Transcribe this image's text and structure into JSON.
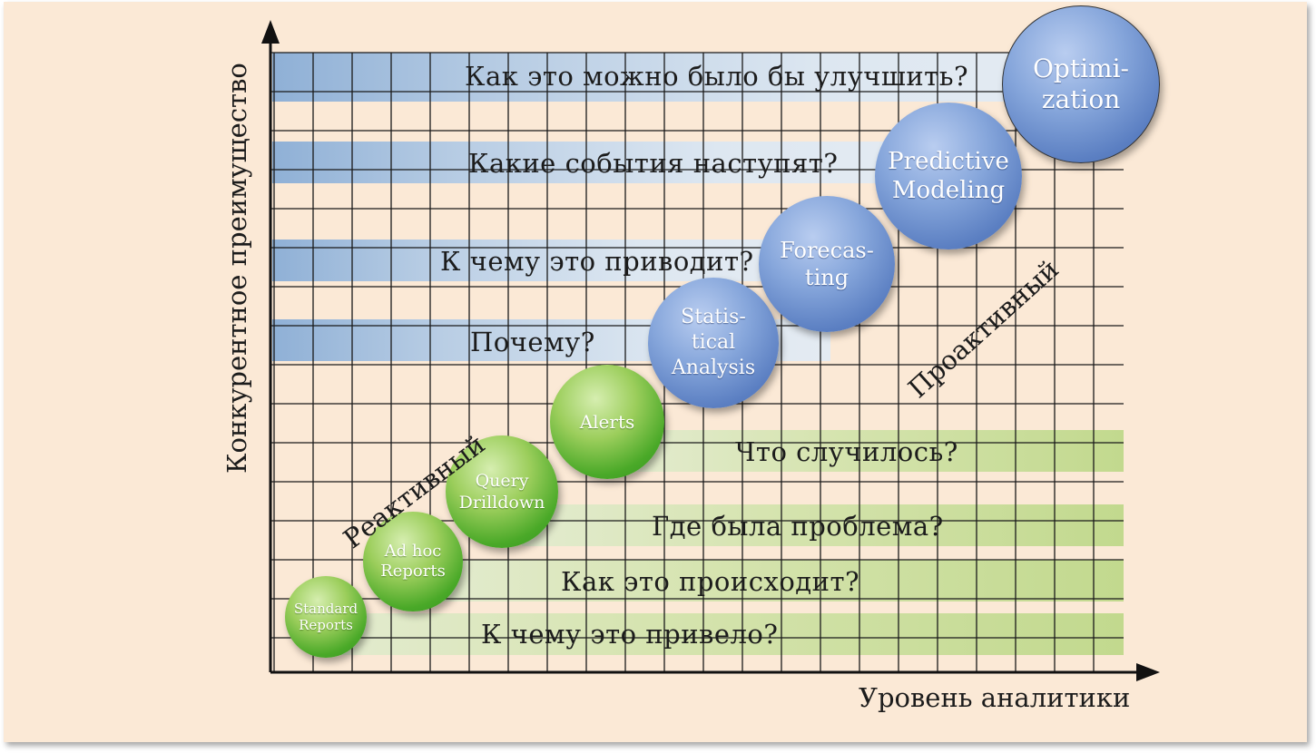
{
  "axes": {
    "x_label": "Уровень аналитики",
    "y_label": "Конкурентное преимущество"
  },
  "zones": {
    "reactive": "Реактивный",
    "proactive": "Проактивный"
  },
  "questions_proactive": [
    "Как это можно было бы улучшить?",
    "Какие события наступят?",
    "К чему это приводит?",
    "Почему?"
  ],
  "questions_reactive": [
    "Что случилось?",
    "Где была проблема?",
    "Как это происходит?",
    "К чему это привело?"
  ],
  "stages": [
    {
      "label": "Standard\nReports",
      "color": "green"
    },
    {
      "label": "Ad hoc\nReports",
      "color": "green"
    },
    {
      "label": "Query\nDrilldown",
      "color": "green"
    },
    {
      "label": "Alerts",
      "color": "green"
    },
    {
      "label": "Statis-\ntical\nAnalysis",
      "color": "blue"
    },
    {
      "label": "Forecas-\nting",
      "color": "blue"
    },
    {
      "label": "Predictive\nModeling",
      "color": "blue"
    },
    {
      "label": "Optimi-\nzation",
      "color": "blue"
    }
  ],
  "colors": {
    "background": "#fbe9d6",
    "grid": "#1a1a1a",
    "proactive_band": "#b8cde4",
    "reactive_band": "#c9dd9a",
    "stage_green": "#4aa928",
    "stage_blue": "#5b7fc2"
  }
}
